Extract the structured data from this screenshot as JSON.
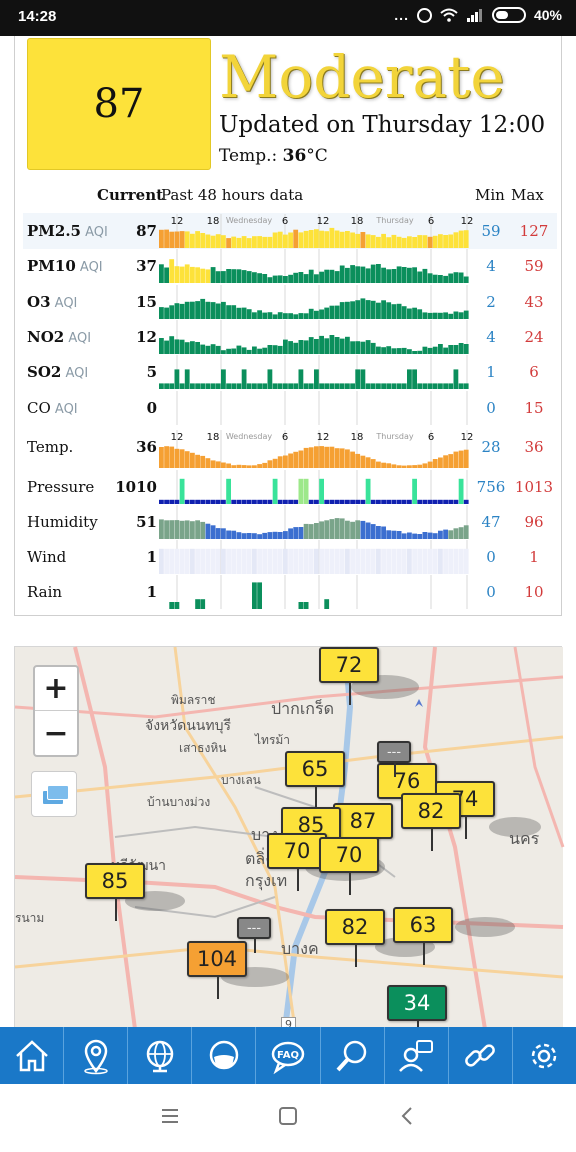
{
  "status_bar": {
    "time": "14:28",
    "dots": "...",
    "battery": "40%"
  },
  "summary": {
    "aqi": "87",
    "level": "Moderate",
    "level_color": "#fde23a",
    "updated": "Updated on Thursday 12:00",
    "temp_label": "Temp.: ",
    "temp_value": "36",
    "temp_unit": "°C"
  },
  "table_header": {
    "current": "Current",
    "past": "Past 48 hours data",
    "min": "Min",
    "max": "Max"
  },
  "timeline_labels": {
    "hours": [
      "12",
      "18",
      "6",
      "12",
      "18",
      "6",
      "12"
    ],
    "days": [
      "Wednesday",
      "Thursday"
    ]
  },
  "rows": [
    {
      "name": "PM2.5",
      "unit": "AQI",
      "current": "87",
      "min": "59",
      "max": "127"
    },
    {
      "name": "PM10",
      "unit": "AQI",
      "current": "37",
      "min": "4",
      "max": "59"
    },
    {
      "name": "O3",
      "unit": "AQI",
      "current": "15",
      "min": "2",
      "max": "43"
    },
    {
      "name": "NO2",
      "unit": "AQI",
      "current": "12",
      "min": "4",
      "max": "24"
    },
    {
      "name": "SO2",
      "unit": "AQI",
      "current": "5",
      "min": "1",
      "max": "6"
    },
    {
      "name": "CO",
      "unit": "AQI",
      "current": "0",
      "min": "0",
      "max": "15"
    },
    {
      "name": "Temp.",
      "unit": "",
      "current": "36",
      "min": "28",
      "max": "36"
    },
    {
      "name": "Pressure",
      "unit": "",
      "current": "1010",
      "min": "756",
      "max": "1013"
    },
    {
      "name": "Humidity",
      "unit": "",
      "current": "51",
      "min": "47",
      "max": "96"
    },
    {
      "name": "Wind",
      "unit": "",
      "current": "1",
      "min": "0",
      "max": "1"
    },
    {
      "name": "Rain",
      "unit": "",
      "current": "1",
      "min": "0",
      "max": "10"
    }
  ],
  "map": {
    "zoom_in": "+",
    "zoom_out": "−",
    "places": [
      "ปากเกร็ด",
      "พิมลราช",
      "จังหวัดนนทบุรี",
      "เสาธงหิน",
      "ไทรม้า",
      "บางเลน",
      "บ้านบางม่วง",
      "ทวีวัฒนา",
      "ตลิ่ง",
      "กรุงเท",
      "บางค",
      "รนาม",
      "บาง",
      "นคร",
      "9"
    ],
    "markers": [
      {
        "value": "72",
        "color": "yellow"
      },
      {
        "value": "65",
        "color": "yellow"
      },
      {
        "value": "76",
        "color": "yellow"
      },
      {
        "value": "74",
        "color": "yellow"
      },
      {
        "value": "87",
        "color": "yellow"
      },
      {
        "value": "82",
        "color": "yellow"
      },
      {
        "value": "85",
        "color": "yellow"
      },
      {
        "value": "70",
        "color": "yellow"
      },
      {
        "value": "70",
        "color": "yellow"
      },
      {
        "value": "85",
        "color": "yellow"
      },
      {
        "value": "82",
        "color": "yellow"
      },
      {
        "value": "63",
        "color": "yellow"
      },
      {
        "value": "104",
        "color": "orange"
      },
      {
        "value": "34",
        "color": "green"
      },
      {
        "value": "---",
        "color": "gray"
      },
      {
        "value": "---",
        "color": "gray"
      }
    ]
  },
  "nav": [
    "home-icon",
    "location-icon",
    "globe-icon",
    "mask-icon",
    "faq-icon",
    "search-icon",
    "advisor-icon",
    "link-icon",
    "gear-icon"
  ],
  "nav_faq_text": "FAQ",
  "colors": {
    "yellow": "#fde23a",
    "orange": "#f5a033",
    "green": "#0b8f5c",
    "blue": "#1a78c8",
    "min": "#2b83c4",
    "max": "#d23b3b"
  }
}
